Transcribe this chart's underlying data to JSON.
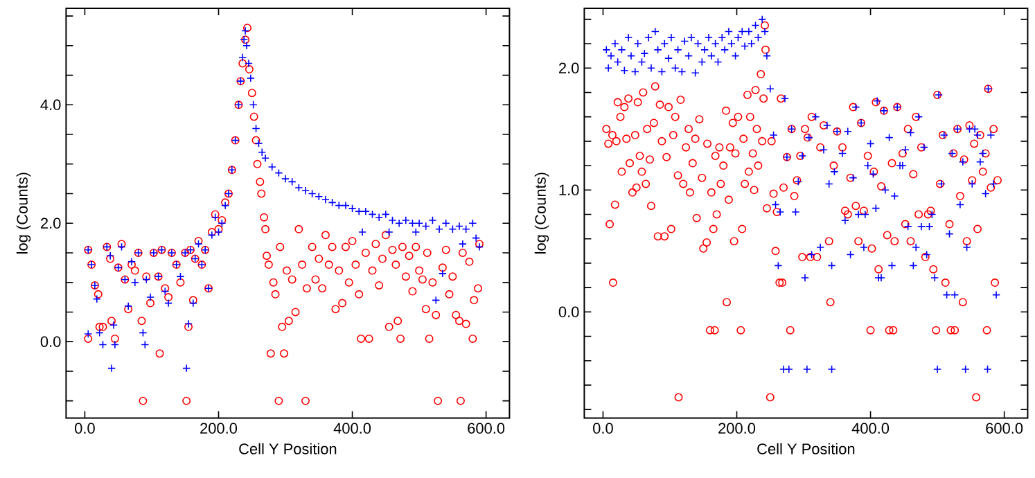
{
  "chart_data": [
    {
      "type": "scatter",
      "xlabel": "Cell Y Position",
      "ylabel": "log (Counts)",
      "xlim": [
        -28,
        635
      ],
      "ylim": [
        -1.29,
        5.63
      ],
      "xticks": [
        {
          "value": 0,
          "label": "0.0"
        },
        {
          "value": 200,
          "label": "200.0"
        },
        {
          "value": 400,
          "label": "400.0"
        },
        {
          "value": 600,
          "label": "600.0"
        }
      ],
      "yticks": [
        {
          "value": -1.0,
          "label": null
        },
        {
          "value": -0.5,
          "label": null
        },
        {
          "value": 0,
          "label": "0.0"
        },
        {
          "value": 0.5,
          "label": null
        },
        {
          "value": 1.0,
          "label": null
        },
        {
          "value": 1.5,
          "label": null
        },
        {
          "value": 2.0,
          "label": "2.0"
        },
        {
          "value": 2.5,
          "label": null
        },
        {
          "value": 3.0,
          "label": null
        },
        {
          "value": 3.5,
          "label": null
        },
        {
          "value": 4.0,
          "label": "4.0"
        },
        {
          "value": 4.5,
          "label": null
        },
        {
          "value": 5.0,
          "label": null
        },
        {
          "value": 5.5,
          "label": null
        }
      ],
      "series": [
        {
          "color": "#ff0000",
          "marker": "circle",
          "x": [
            5,
            5,
            10,
            15,
            20,
            22,
            27,
            33,
            38,
            40,
            45,
            50,
            55,
            60,
            65,
            70,
            75,
            80,
            85,
            87,
            92,
            98,
            103,
            110,
            112,
            115,
            120,
            125,
            130,
            137,
            143,
            150,
            152,
            155,
            158,
            162,
            165,
            170,
            175,
            180,
            185,
            190,
            195,
            200,
            205,
            210,
            215,
            220,
            225,
            230,
            233,
            236,
            240,
            243,
            246,
            250,
            253,
            256,
            258,
            262,
            264,
            268,
            270,
            272,
            275,
            278,
            282,
            285,
            290,
            292,
            295,
            298,
            302,
            305,
            310,
            315,
            320,
            325,
            330,
            332,
            340,
            345,
            350,
            355,
            360,
            365,
            370,
            375,
            380,
            385,
            390,
            395,
            400,
            405,
            410,
            413,
            420,
            425,
            430,
            435,
            440,
            445,
            450,
            455,
            460,
            465,
            468,
            472,
            475,
            480,
            485,
            490,
            495,
            500,
            505,
            510,
            512,
            515,
            520,
            525,
            528,
            535,
            540,
            545,
            550,
            555,
            560,
            562,
            565,
            570,
            575,
            580,
            582,
            588,
            590
          ],
          "values": [
            1.55,
            0.05,
            1.3,
            0.95,
            0.8,
            0.25,
            0.25,
            1.6,
            1.4,
            0.35,
            0.05,
            1.25,
            1.65,
            1.05,
            0.55,
            1.3,
            1.2,
            1.5,
            0.35,
            -1.0,
            1.1,
            0.65,
            1.5,
            1.1,
            -0.2,
            1.55,
            0.9,
            0.75,
            1.5,
            1.3,
            1.0,
            1.5,
            -1.0,
            0.25,
            1.55,
            0.7,
            1.4,
            1.7,
            1.3,
            1.55,
            0.9,
            1.85,
            2.15,
            1.9,
            2.05,
            2.35,
            2.5,
            2.9,
            3.4,
            4.0,
            4.4,
            4.7,
            5.1,
            5.3,
            4.6,
            4.2,
            3.8,
            3.4,
            3.0,
            2.7,
            2.5,
            2.1,
            1.9,
            1.45,
            1.3,
            -0.2,
            1.0,
            0.8,
            -1.0,
            1.6,
            0.25,
            -0.2,
            1.2,
            0.35,
            1.05,
            0.5,
            1.9,
            1.3,
            -1.0,
            0.9,
            1.6,
            1.05,
            1.4,
            0.9,
            1.8,
            1.3,
            1.6,
            0.55,
            1.2,
            0.65,
            1.6,
            1.0,
            1.7,
            1.3,
            0.8,
            0.05,
            1.5,
            0.05,
            1.2,
            1.65,
            0.95,
            1.4,
            1.8,
            0.25,
            1.55,
            1.3,
            0.35,
            0.05,
            1.6,
            1.1,
            1.45,
            0.85,
            1.6,
            1.2,
            1.05,
            0.55,
            1.5,
            0.05,
            1.0,
            0.45,
            -1.0,
            1.25,
            1.55,
            0.8,
            1.1,
            0.45,
            0.35,
            -1.0,
            1.5,
            0.3,
            1.35,
            0.05,
            0.7,
            0.9,
            1.65
          ]
        },
        {
          "color": "#0000ff",
          "marker": "cross",
          "x": [
            5,
            5,
            10,
            15,
            18,
            22,
            27,
            33,
            38,
            40,
            43,
            45,
            50,
            55,
            60,
            65,
            70,
            75,
            80,
            87,
            90,
            92,
            98,
            103,
            110,
            115,
            120,
            125,
            130,
            137,
            143,
            150,
            152,
            155,
            158,
            162,
            165,
            170,
            175,
            180,
            185,
            190,
            195,
            200,
            205,
            210,
            215,
            220,
            225,
            230,
            233,
            236,
            238,
            240,
            242,
            245,
            248,
            252,
            256,
            260,
            265,
            270,
            280,
            290,
            300,
            310,
            320,
            330,
            340,
            350,
            360,
            370,
            380,
            390,
            400,
            410,
            415,
            420,
            430,
            440,
            450,
            455,
            460,
            470,
            480,
            490,
            495,
            500,
            510,
            520,
            525,
            530,
            535,
            540,
            550,
            560,
            565,
            570,
            580,
            585,
            590
          ],
          "values": [
            1.55,
            0.13,
            1.3,
            0.95,
            0.72,
            0.15,
            -0.05,
            1.6,
            1.45,
            -0.45,
            0.28,
            -0.05,
            1.25,
            1.6,
            1.05,
            0.6,
            1.35,
            1.0,
            1.5,
            0.15,
            -0.05,
            1.05,
            0.75,
            1.5,
            1.1,
            1.55,
            0.85,
            0.65,
            1.5,
            1.3,
            1.1,
            1.5,
            -0.45,
            0.3,
            1.55,
            0.65,
            1.4,
            1.65,
            1.3,
            1.55,
            0.9,
            1.8,
            2.1,
            1.85,
            2.0,
            2.3,
            2.5,
            2.9,
            3.4,
            4.0,
            4.4,
            4.8,
            5.1,
            5.25,
            5.0,
            4.7,
            4.45,
            4.0,
            3.6,
            3.35,
            3.2,
            3.1,
            2.95,
            2.85,
            2.75,
            2.7,
            2.6,
            2.55,
            2.5,
            2.45,
            2.4,
            2.35,
            2.3,
            2.3,
            2.25,
            2.2,
            1.85,
            2.2,
            2.15,
            2.1,
            2.15,
            1.85,
            2.05,
            2.0,
            2.05,
            2.0,
            1.85,
            2.0,
            1.95,
            2.05,
            0.7,
            1.9,
            1.15,
            2.0,
            1.9,
            1.95,
            1.65,
            1.9,
            2.0,
            1.75,
            1.6
          ]
        }
      ]
    },
    {
      "type": "scatter",
      "xlabel": "Cell Y Position",
      "ylabel": "log (Counts)",
      "xlim": [
        -28,
        635
      ],
      "ylim": [
        -0.87,
        2.49
      ],
      "xticks": [
        {
          "value": 0,
          "label": "0.0"
        },
        {
          "value": 200,
          "label": "200.0"
        },
        {
          "value": 400,
          "label": "400.0"
        },
        {
          "value": 600,
          "label": "600.0"
        }
      ],
      "yticks": [
        {
          "value": -0.8,
          "label": null
        },
        {
          "value": -0.6,
          "label": null
        },
        {
          "value": -0.4,
          "label": null
        },
        {
          "value": -0.2,
          "label": null
        },
        {
          "value": 0,
          "label": "0.0"
        },
        {
          "value": 0.2,
          "label": null
        },
        {
          "value": 0.4,
          "label": null
        },
        {
          "value": 0.6,
          "label": null
        },
        {
          "value": 0.8,
          "label": null
        },
        {
          "value": 1.0,
          "label": "1.0"
        },
        {
          "value": 1.2,
          "label": null
        },
        {
          "value": 1.4,
          "label": null
        },
        {
          "value": 1.6,
          "label": null
        },
        {
          "value": 1.8,
          "label": null
        },
        {
          "value": 2.0,
          "label": "2.0"
        },
        {
          "value": 2.2,
          "label": null
        },
        {
          "value": 2.4,
          "label": null
        }
      ],
      "series": [
        {
          "color": "#ff0000",
          "marker": "circle",
          "x": [
            5,
            8,
            10,
            14,
            15,
            18,
            20,
            22,
            26,
            28,
            32,
            35,
            38,
            40,
            44,
            48,
            50,
            52,
            55,
            58,
            60,
            64,
            66,
            70,
            72,
            76,
            78,
            82,
            85,
            88,
            92,
            95,
            98,
            102,
            105,
            108,
            112,
            113,
            116,
            120,
            124,
            128,
            130,
            134,
            138,
            140,
            144,
            148,
            150,
            155,
            156,
            160,
            162,
            165,
            167,
            168,
            170,
            174,
            176,
            180,
            184,
            185,
            188,
            190,
            194,
            196,
            198,
            202,
            206,
            208,
            210,
            212,
            216,
            218,
            220,
            224,
            226,
            228,
            230,
            232,
            236,
            238,
            240,
            242,
            243,
            245,
            250,
            252,
            255,
            258,
            260,
            264,
            266,
            268,
            270,
            275,
            280,
            282,
            286,
            290,
            295,
            298,
            302,
            306,
            310,
            312,
            320,
            325,
            330,
            338,
            340,
            345,
            350,
            358,
            362,
            366,
            370,
            374,
            378,
            382,
            386,
            390,
            396,
            400,
            402,
            405,
            408,
            412,
            416,
            420,
            425,
            428,
            432,
            434,
            436,
            440,
            448,
            452,
            456,
            460,
            464,
            468,
            472,
            476,
            482,
            486,
            490,
            494,
            498,
            500,
            504,
            508,
            512,
            518,
            520,
            524,
            526,
            530,
            534,
            538,
            540,
            544,
            548,
            552,
            555,
            558,
            560,
            564,
            568,
            572,
            574,
            576,
            580,
            584,
            586,
            590
          ],
          "values": [
            1.5,
            1.38,
            0.72,
            1.45,
            0.24,
            0.88,
            1.4,
            1.72,
            1.6,
            1.15,
            1.68,
            1.42,
            1.75,
            1.22,
            0.98,
            1.45,
            1.02,
            1.72,
            1.28,
            1.15,
            1.8,
            1.05,
            1.5,
            1.25,
            0.87,
            1.55,
            1.85,
            0.62,
            1.7,
            1.4,
            0.62,
            1.27,
            1.68,
            0.68,
            1.45,
            1.6,
            1.12,
            -0.7,
            1.74,
            1.05,
            1.35,
            1.5,
            0.98,
            1.22,
            1.42,
            0.77,
            1.58,
            1.1,
            0.52,
            0.57,
            1.38,
            -0.15,
            0.98,
            0.68,
            -0.15,
            1.28,
            0.8,
            1.35,
            1.05,
            1.2,
            1.65,
            0.08,
            0.92,
            1.35,
            1.55,
            0.58,
            1.3,
            1.6,
            -0.15,
            0.68,
            1.42,
            1.05,
            1.78,
            1.15,
            1.6,
            1.3,
            1.0,
            1.82,
            1.5,
            1.2,
            1.95,
            1.4,
            1.75,
            2.35,
            2.15,
            0.85,
            -0.7,
            1.4,
            0.97,
            0.5,
            0.82,
            0.24,
            1.75,
            0.24,
            1.02,
            1.27,
            -0.15,
            1.5,
            0.95,
            1.08,
            1.28,
            0.45,
            1.5,
            1.43,
            0.45,
            1.6,
            0.45,
            1.35,
            1.53,
            0.58,
            0.08,
            1.2,
            1.48,
            1.35,
            0.83,
            0.8,
            1.1,
            1.68,
            0.87,
            0.58,
            1.55,
            0.83,
            1.28,
            -0.15,
            0.52,
            1.15,
            1.72,
            0.35,
            1.03,
            1.65,
            0.63,
            -0.15,
            1.22,
            -0.15,
            0.58,
            1.68,
            1.3,
            0.72,
            1.5,
            0.58,
            1.13,
            1.6,
            0.8,
            1.35,
            0.45,
            0.8,
            0.83,
            0.35,
            -0.15,
            1.78,
            1.05,
            1.45,
            0.24,
            0.72,
            -0.15,
            1.3,
            -0.15,
            1.5,
            0.95,
            0.08,
            1.25,
            0.58,
            1.53,
            1.08,
            1.38,
            -0.7,
            0.68,
            1.45,
            1.15,
            1.3,
            -0.15,
            1.83,
            1.02,
            1.5,
            0.24,
            1.08
          ]
        },
        {
          "color": "#0000ff",
          "marker": "cross",
          "x": [
            5,
            8,
            12,
            18,
            22,
            28,
            32,
            38,
            42,
            48,
            52,
            58,
            62,
            68,
            72,
            78,
            82,
            88,
            92,
            98,
            102,
            108,
            112,
            118,
            122,
            128,
            132,
            138,
            142,
            148,
            152,
            158,
            162,
            168,
            172,
            178,
            182,
            188,
            192,
            198,
            202,
            208,
            212,
            218,
            222,
            228,
            232,
            238,
            242,
            245,
            250,
            255,
            258,
            262,
            265,
            270,
            272,
            275,
            278,
            282,
            288,
            292,
            298,
            302,
            305,
            308,
            312,
            318,
            325,
            330,
            335,
            338,
            342,
            342,
            346,
            350,
            358,
            362,
            366,
            370,
            374,
            378,
            382,
            386,
            390,
            392,
            396,
            400,
            404,
            408,
            410,
            412,
            416,
            420,
            422,
            428,
            432,
            436,
            440,
            444,
            448,
            452,
            456,
            460,
            464,
            468,
            472,
            476,
            480,
            484,
            488,
            492,
            496,
            500,
            502,
            506,
            510,
            514,
            518,
            522,
            526,
            530,
            534,
            538,
            542,
            544,
            548,
            552,
            556,
            560,
            564,
            568,
            572,
            575,
            576,
            580,
            584,
            588
          ],
          "values": [
            2.15,
            2.0,
            2.1,
            2.2,
            2.05,
            2.15,
            1.98,
            2.25,
            2.1,
            1.97,
            2.2,
            2.05,
            2.12,
            2.25,
            2.0,
            2.3,
            2.15,
            1.97,
            2.2,
            2.08,
            2.25,
            2.0,
            2.15,
            1.97,
            2.22,
            2.1,
            2.25,
            1.96,
            2.2,
            2.05,
            2.15,
            2.25,
            2.1,
            2.2,
            2.05,
            2.25,
            2.15,
            2.3,
            2.2,
            2.1,
            2.25,
            2.3,
            2.18,
            2.3,
            2.2,
            2.35,
            2.25,
            2.4,
            2.3,
            2.1,
            1.83,
            1.45,
            0.88,
            0.38,
            0.82,
            -0.47,
            1.75,
            1.27,
            -0.47,
            1.5,
            0.82,
            1.07,
            1.28,
            0.28,
            -0.47,
            1.43,
            0.47,
            1.6,
            0.53,
            1.33,
            1.53,
            1.05,
            0.38,
            -0.47,
            1.15,
            1.48,
            1.3,
            0.75,
            1.48,
            0.47,
            1.1,
            1.68,
            0.8,
            1.55,
            0.53,
            0.8,
            1.2,
            1.38,
            1.13,
            0.85,
            1.73,
            0.28,
            0.28,
            1.65,
            1.0,
            1.43,
            0.38,
            0.95,
            1.68,
            1.2,
            1.2,
            1.33,
            0.7,
            1.47,
            0.38,
            0.53,
            1.6,
            0.7,
            1.35,
            0.47,
            0.7,
            0.8,
            0.28,
            -0.47,
            1.78,
            1.05,
            1.45,
            0.14,
            0.64,
            1.3,
            0.14,
            1.5,
            0.88,
            1.23,
            -0.47,
            0.53,
            1.5,
            1.05,
            1.5,
            1.45,
            1.23,
            1.3,
            0.97,
            -0.47,
            1.83,
            1.45,
            1.05,
            0.14
          ]
        }
      ]
    }
  ]
}
